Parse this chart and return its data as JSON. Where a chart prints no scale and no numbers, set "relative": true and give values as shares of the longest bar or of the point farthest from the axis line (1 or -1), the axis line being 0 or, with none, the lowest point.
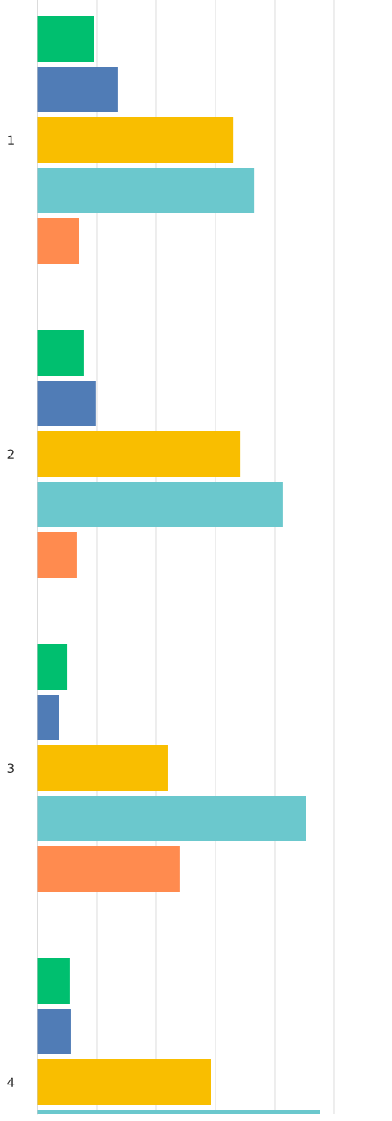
{
  "chart_data": {
    "type": "bar",
    "orientation": "horizontal",
    "relative": true,
    "grid": "x",
    "tick_labels": "y",
    "categories": [
      "1",
      "2",
      "3",
      "4"
    ],
    "series": [
      {
        "color": "#00bf6f",
        "values": [
          0.199,
          0.164,
          0.104,
          0.115
        ]
      },
      {
        "color": "#507cb6",
        "values": [
          0.285,
          0.207,
          0.075,
          0.118
        ]
      },
      {
        "color": "#f9be00",
        "values": [
          0.695,
          0.718,
          0.461,
          0.614
        ]
      },
      {
        "color": "#6bc8cd",
        "values": [
          0.767,
          0.87,
          0.951,
          1.0
        ]
      },
      {
        "color": "#ff8b4f",
        "values": [
          0.147,
          0.141,
          0.504,
          null
        ]
      }
    ]
  }
}
